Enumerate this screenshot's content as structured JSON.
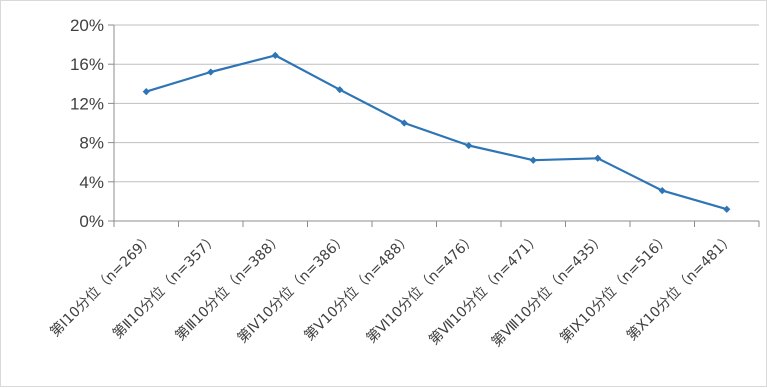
{
  "chart_data": {
    "type": "line",
    "title": "",
    "xlabel": "",
    "ylabel": "",
    "categories": [
      "第Ⅰ10分位（n=269）",
      "第Ⅱ10分位（n=357）",
      "第Ⅲ10分位（n=388）",
      "第Ⅳ10分位（n=386）",
      "第Ⅴ10分位（n=488）",
      "第Ⅵ10分位（n=476）",
      "第Ⅶ10分位（n=471）",
      "第Ⅷ10分位（n=435）",
      "第Ⅸ10分位（n=516）",
      "第Ⅹ10分位（n=481）"
    ],
    "series": [
      {
        "values": [
          13.2,
          15.2,
          16.9,
          13.4,
          10.0,
          7.7,
          6.2,
          6.4,
          3.1,
          1.2
        ],
        "color": "#2e75b6"
      }
    ],
    "ylim": [
      0,
      20
    ],
    "yticks": [
      0,
      4,
      8,
      12,
      16,
      20
    ],
    "ytick_labels": [
      "0%",
      "4%",
      "8%",
      "12%",
      "16%",
      "20%"
    ],
    "grid": true,
    "legend": "none"
  }
}
